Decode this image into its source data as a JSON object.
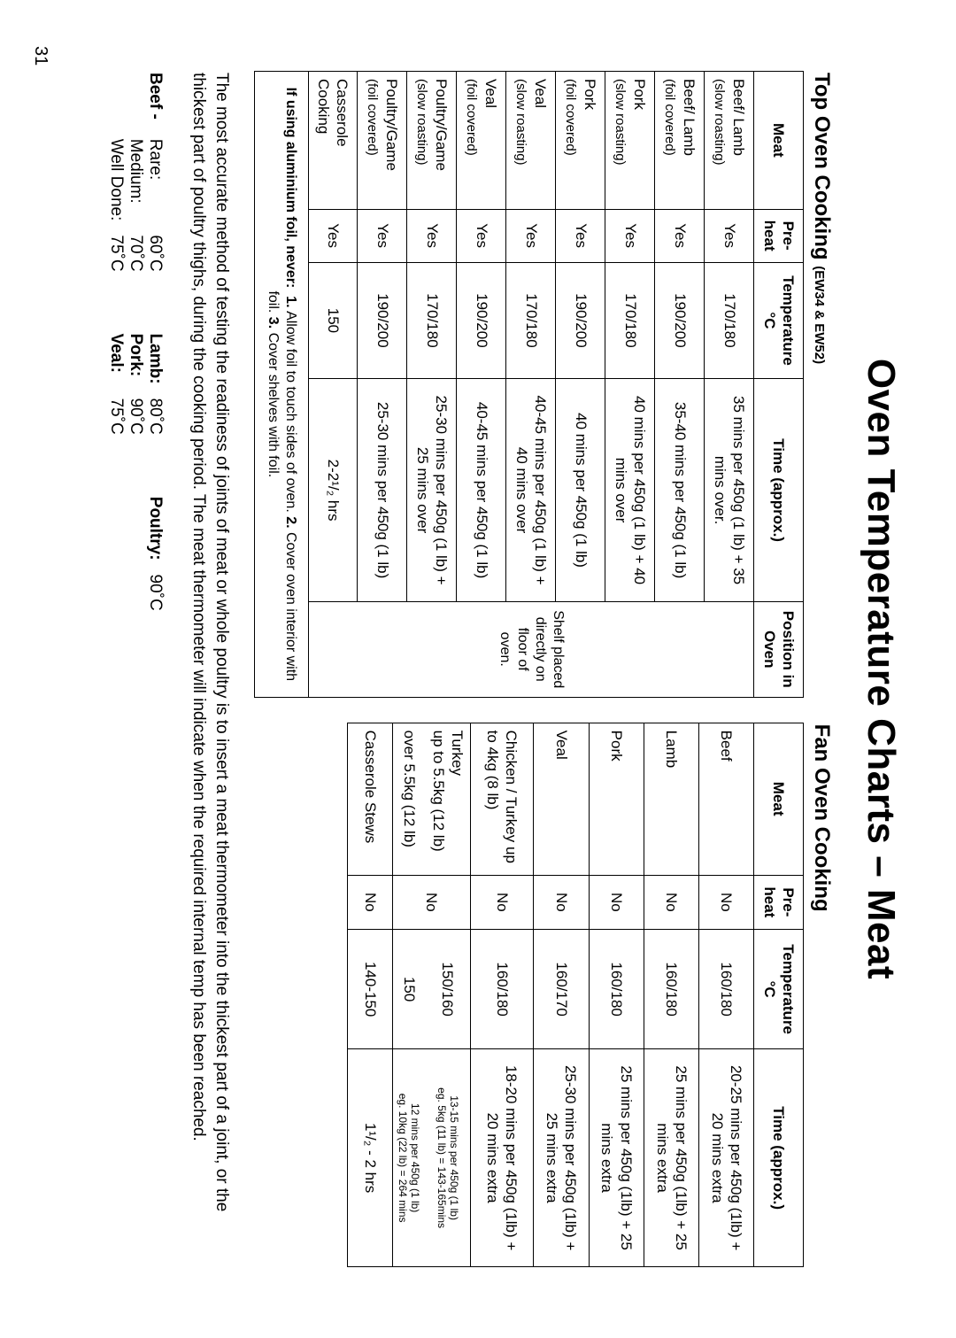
{
  "page_number": "31",
  "title": "Oven Temperature Charts – Meat",
  "left": {
    "caption": "Top Oven Cooking",
    "caption_sub": "(EW34 & EW52)",
    "headers": [
      "Meat",
      "Pre-heat",
      "Temperature °C",
      "Time (approx.)",
      "Position in Oven"
    ],
    "position_text": "Shelf placed directly on floor of oven.",
    "rows": [
      {
        "meat": "Beef/ Lamb",
        "meat_sub": "(slow roasting)",
        "pre": "Yes",
        "temp": "170/180",
        "time": "35 mins per 450g (1 lb) + 35 mins over."
      },
      {
        "meat": "Beef/ Lamb",
        "meat_sub": "(foil covered)",
        "pre": "Yes",
        "temp": "190/200",
        "time": "35-40 mins per 450g (1 lb)"
      },
      {
        "meat": "Pork",
        "meat_sub": "(slow roasting)",
        "pre": "Yes",
        "temp": "170/180",
        "time": "40 mins per 450g (1 lb) + 40 mins over"
      },
      {
        "meat": "Pork",
        "meat_sub": "(foil covered)",
        "pre": "Yes",
        "temp": "190/200",
        "time": "40 mins per 450g (1 lb)"
      },
      {
        "meat": "Veal",
        "meat_sub": "(slow roasting)",
        "pre": "Yes",
        "temp": "170/180",
        "time": "40-45 mins per 450g (1 lb) + 40 mins over"
      },
      {
        "meat": "Veal",
        "meat_sub": "(foil covered)",
        "pre": "Yes",
        "temp": "190/200",
        "time": "40-45 mins per 450g (1 lb)"
      },
      {
        "meat": "Poultry/Game",
        "meat_sub": "(slow roasting)",
        "pre": "Yes",
        "temp": "170/180",
        "time": "25-30 mins per 450g (1 lb) + 25 mins over"
      },
      {
        "meat": "Poultry/Game",
        "meat_sub": "(foil covered)",
        "pre": "Yes",
        "temp": "190/200",
        "time": "25-30 mins per 450g (1 lb)"
      },
      {
        "meat": "Casserole Cooking",
        "meat_sub": "",
        "pre": "Yes",
        "temp": "150",
        "time": "2-2¹/₂ hrs"
      }
    ]
  },
  "right": {
    "caption": "Fan Oven Cooking",
    "headers": [
      "Meat",
      "Pre-heat",
      "Temperature °C",
      "Time (approx.)"
    ],
    "rows": [
      {
        "meat": "Beef",
        "pre": "No",
        "temp": "160/180",
        "time": "20-25 mins per 450g (1lb) + 20 mins extra"
      },
      {
        "meat": "Lamb",
        "pre": "No",
        "temp": "160/180",
        "time": "25 mins per 450g (1lb) + 25 mins extra"
      },
      {
        "meat": "Pork",
        "pre": "No",
        "temp": "160/180",
        "time": "25 mins per 450g (1lb) + 25 mins extra"
      },
      {
        "meat": "Veal",
        "pre": "No",
        "temp": "160/170",
        "time": "25-30 mins per 450g (1lb) + 25 mins extra"
      },
      {
        "meat": "Chicken / Turkey up to 4kg (8 lb)",
        "pre": "No",
        "temp": "160/180",
        "time": "18-20 mins per 450g (1lb) + 20 mins extra"
      }
    ],
    "turkey": {
      "meat1": "Turkey",
      "meat2": "up to 5.5kg (12 lb)",
      "meat3": "over 5.5kg (12 lb)",
      "pre": "No",
      "temp1": "150/160",
      "temp2": "150",
      "time1": "13-15 mins per 450g (1 lb)",
      "time1b": "eg. 5kg (11 lb) = 143-165mins",
      "time2": "12 mins per 450g (1 lb)",
      "time2b": "eg. 10kg (22 lb) = 264 mins"
    },
    "last": {
      "meat": "Casserole Stews",
      "pre": "No",
      "temp": "140-150",
      "time": "1¹/₂ - 2 hrs"
    }
  },
  "foil_note": {
    "lead": "If using aluminium foil, never:",
    "p1": "1.",
    "t1": " Allow foil to touch sides of oven.   ",
    "p2": "2.",
    "t2": " Cover oven interior with foil.   ",
    "p3": "3.",
    "t3": " Cover shelves with foil."
  },
  "paragraph": "The most accurate method of testing the readiness of joints of meat or whole poultry is to insert a meat thermometer into the thickest part of a joint, or the thickest part of poultry thighs, during the cooking period. The meat thermometer will indicate when the required internal temp has been reached.",
  "temps": {
    "beef_lead": "Beef -",
    "beef_labels": [
      "Rare:",
      "Medium:",
      "Well Done:"
    ],
    "beef_vals": [
      "60˚C",
      "70˚C",
      "75˚C"
    ],
    "other_labels": [
      "Lamb:",
      "Pork:",
      "Veal:"
    ],
    "other_vals": [
      "80˚C",
      "90˚C",
      "75˚C"
    ],
    "poultry_label": "Poultry:",
    "poultry_val": "90˚C"
  }
}
